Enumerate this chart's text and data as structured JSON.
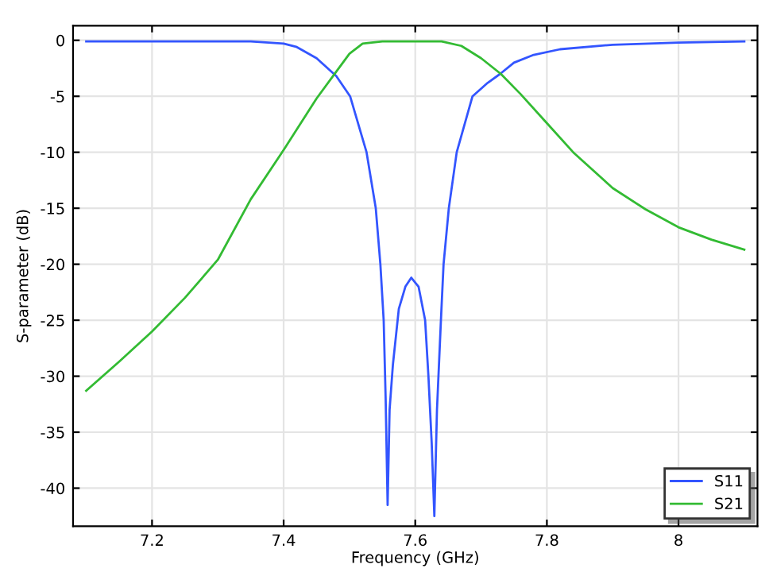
{
  "chart_data": {
    "type": "line",
    "xlabel": "Frequency (GHz)",
    "ylabel": "S-parameter (dB)",
    "xlim": [
      7.08,
      8.12
    ],
    "ylim": [
      -43.4,
      1.3
    ],
    "xticks": [
      {
        "value": 7.2,
        "label": "7.2"
      },
      {
        "value": 7.4,
        "label": "7.4"
      },
      {
        "value": 7.6,
        "label": "7.6"
      },
      {
        "value": 7.8,
        "label": "7.8"
      },
      8
    ],
    "yticks": [
      -40,
      -35,
      -30,
      -25,
      -20,
      -15,
      -10,
      -5,
      0
    ],
    "grid": true,
    "legend": "bottom right",
    "line_style": "solid",
    "marker": "none",
    "series": [
      {
        "name": "S11",
        "color": "#3355ff",
        "x": [
          7.1,
          7.2,
          7.3,
          7.35,
          7.4,
          7.42,
          7.45,
          7.48,
          7.501,
          7.526,
          7.54,
          7.547,
          7.552,
          7.555,
          7.558,
          7.561,
          7.566,
          7.575,
          7.585,
          7.594,
          7.605,
          7.615,
          7.62,
          7.625,
          7.629,
          7.633,
          7.639,
          7.643,
          7.651,
          7.663,
          7.687,
          7.71,
          7.729,
          7.75,
          7.78,
          7.82,
          7.9,
          8.0,
          8.1
        ],
        "values": [
          -0.1,
          -0.1,
          -0.1,
          -0.1,
          -0.3,
          -0.6,
          -1.6,
          -3.2,
          -5,
          -10,
          -15,
          -20,
          -25,
          -32,
          -41.5,
          -33,
          -29,
          -24,
          -22,
          -21.2,
          -22,
          -25,
          -30,
          -36,
          -42.5,
          -33,
          -25,
          -20,
          -15,
          -10,
          -5,
          -3.8,
          -3,
          -2,
          -1.3,
          -0.8,
          -0.4,
          -0.2,
          -0.1
        ]
      },
      {
        "name": "S21",
        "color": "#33bb33",
        "x": [
          7.1,
          7.15,
          7.2,
          7.25,
          7.3,
          7.35,
          7.4,
          7.45,
          7.48,
          7.5,
          7.52,
          7.55,
          7.6,
          7.64,
          7.67,
          7.7,
          7.73,
          7.76,
          7.8,
          7.84,
          7.9,
          7.95,
          8.0,
          8.05,
          8.1
        ],
        "values": [
          -31.3,
          -28.7,
          -26,
          -23,
          -19.6,
          -14.2,
          -9.8,
          -5.2,
          -2.8,
          -1.2,
          -0.3,
          -0.1,
          -0.1,
          -0.1,
          -0.5,
          -1.6,
          -3,
          -4.8,
          -7.4,
          -10,
          -13.2,
          -15.1,
          -16.7,
          -17.8,
          -18.7
        ]
      }
    ]
  }
}
